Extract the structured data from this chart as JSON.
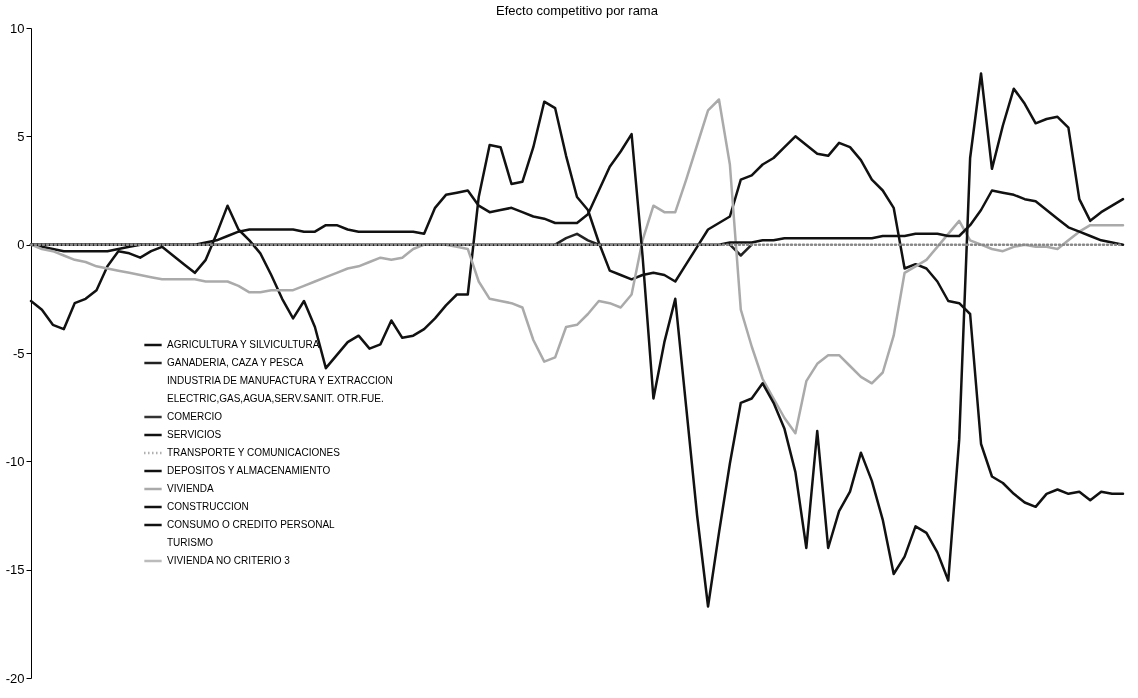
{
  "chart_data": {
    "type": "line",
    "title": "Efecto competitivo por rama",
    "categories": [
      null,
      null,
      null,
      null,
      null,
      null,
      null,
      null,
      null,
      null,
      null,
      null,
      null,
      null,
      null,
      null,
      null,
      null,
      null,
      null,
      null,
      null,
      null,
      null,
      null,
      null,
      null,
      null,
      null,
      null,
      null,
      null,
      null,
      null,
      null,
      null,
      null,
      null,
      null,
      null,
      null,
      null,
      null,
      null,
      null,
      null,
      null,
      null,
      null,
      null,
      null,
      null,
      null,
      null,
      null,
      null,
      null,
      null,
      null,
      null,
      null,
      null,
      null,
      null,
      null,
      null,
      null,
      null,
      null,
      null,
      null,
      null,
      null,
      null,
      null,
      null,
      null,
      null,
      null,
      null,
      null,
      null,
      null,
      null,
      null,
      null,
      null,
      null,
      null,
      null,
      null,
      null,
      null,
      null,
      null,
      null,
      null,
      null,
      null,
      null,
      null
    ],
    "ylim": [
      -20,
      10
    ],
    "yticks": [
      -20,
      -15,
      -10,
      -5,
      0,
      5,
      10
    ],
    "tick_labels": "y",
    "grid": false,
    "legend": "bottom left",
    "marker": "none",
    "line_style": "solid",
    "series": [
      {
        "name": "AGRICULTURA Y SILVICULTURA",
        "color": "#111111",
        "values": [
          0,
          -0.1,
          -0.2,
          -0.3,
          -0.3,
          -0.3,
          -0.3,
          -0.3,
          -0.2,
          -0.1,
          0,
          null,
          null,
          null,
          null,
          null,
          null,
          null,
          null,
          null,
          null,
          null,
          null,
          null,
          null,
          null,
          null,
          null,
          null,
          null,
          null,
          null,
          null,
          null,
          null,
          null,
          null,
          null,
          null,
          null,
          null,
          null,
          null,
          null,
          null,
          null,
          null,
          null,
          null,
          null,
          null,
          null,
          null,
          null,
          null,
          null,
          null,
          null,
          null,
          null,
          null,
          null,
          null,
          null,
          null,
          null,
          null,
          null,
          null,
          null,
          null,
          null,
          null,
          null,
          null,
          null,
          null,
          null,
          null,
          null,
          null,
          null,
          null,
          null,
          null,
          null,
          null,
          null,
          null,
          null,
          null,
          null,
          null,
          null,
          null,
          null,
          null,
          null,
          null,
          null,
          null
        ]
      },
      {
        "name": "GANADERIA, CAZA Y PESCA",
        "color": "#222222",
        "values": [
          null,
          null,
          null,
          null,
          null,
          null,
          null,
          null,
          null,
          null,
          null,
          null,
          null,
          null,
          null,
          null,
          null,
          null,
          null,
          null,
          null,
          null,
          null,
          null,
          null,
          null,
          null,
          null,
          null,
          null,
          null,
          null,
          null,
          null,
          null,
          null,
          null,
          null,
          null,
          null,
          null,
          null,
          null,
          null,
          null,
          null,
          null,
          null,
          0,
          0.3,
          0.5,
          0.2,
          0,
          null,
          null,
          null,
          null,
          null,
          null,
          null,
          null,
          null,
          null,
          null,
          0,
          -0.5,
          0,
          null,
          null,
          null,
          null,
          null,
          null,
          null,
          null,
          null,
          null,
          null,
          null,
          null,
          null,
          null,
          null,
          null,
          null,
          null,
          null,
          null,
          null,
          null,
          null,
          null,
          null,
          null,
          null,
          null,
          null,
          null,
          null,
          null,
          null
        ]
      },
      {
        "name": "INDUSTRIA DE MANUFACTURA Y EXTRACCION",
        "values": [
          null,
          null,
          null,
          null,
          null,
          null,
          null,
          null,
          null,
          null,
          null,
          null,
          null,
          null,
          null,
          null,
          null,
          null,
          null,
          null,
          null,
          null,
          null,
          null,
          null,
          null,
          null,
          null,
          null,
          null,
          null,
          null,
          null,
          null,
          null,
          null,
          null,
          null,
          null,
          null,
          null,
          null,
          null,
          null,
          null,
          null,
          null,
          null,
          null,
          null,
          null,
          null,
          null,
          null,
          null,
          null,
          null,
          null,
          null,
          null,
          null,
          null,
          null,
          null,
          null,
          null,
          null,
          null,
          null,
          null,
          null,
          null,
          null,
          null,
          null,
          null,
          null,
          null,
          null,
          null,
          null,
          null,
          null,
          null,
          null,
          null,
          null,
          null,
          null,
          null,
          null,
          null,
          null,
          null,
          null,
          null,
          null,
          null,
          null,
          null,
          null
        ]
      },
      {
        "name": "ELECTRIC,GAS,AGUA,SERV.SANIT. OTR.FUE.",
        "values": [
          null,
          null,
          null,
          null,
          null,
          null,
          null,
          null,
          null,
          null,
          null,
          null,
          null,
          null,
          null,
          null,
          null,
          null,
          null,
          null,
          null,
          null,
          null,
          null,
          null,
          null,
          null,
          null,
          null,
          null,
          null,
          null,
          null,
          null,
          null,
          null,
          null,
          null,
          null,
          null,
          null,
          null,
          null,
          null,
          null,
          null,
          null,
          null,
          null,
          null,
          null,
          null,
          null,
          null,
          null,
          null,
          null,
          null,
          null,
          null,
          null,
          null,
          null,
          null,
          null,
          null,
          null,
          null,
          null,
          null,
          null,
          null,
          null,
          null,
          null,
          null,
          null,
          null,
          null,
          null,
          null,
          null,
          null,
          null,
          null,
          null,
          null,
          null,
          null,
          null,
          null,
          null,
          null,
          null,
          null,
          null,
          null,
          null,
          null,
          null,
          null
        ]
      },
      {
        "name": "COMERCIO",
        "color": "#333333",
        "values": [
          null,
          null,
          null,
          null,
          null,
          null,
          null,
          null,
          null,
          null,
          null,
          null,
          null,
          null,
          null,
          null,
          null,
          null,
          null,
          null,
          null,
          null,
          null,
          null,
          null,
          null,
          null,
          null,
          null,
          null,
          null,
          null,
          null,
          null,
          null,
          null,
          null,
          null,
          null,
          null,
          null,
          null,
          null,
          null,
          null,
          null,
          null,
          null,
          null,
          null,
          null,
          null,
          null,
          null,
          null,
          null,
          null,
          null,
          null,
          null,
          null,
          null,
          null,
          null,
          null,
          null,
          null,
          null,
          null,
          null,
          null,
          null,
          null,
          null,
          null,
          null,
          null,
          null,
          null,
          null,
          null,
          null,
          null,
          null,
          null,
          null,
          null,
          null,
          null,
          null,
          null,
          null,
          null,
          null,
          null,
          null,
          null,
          null,
          null,
          null,
          null
        ]
      },
      {
        "name": "SERVICIOS",
        "color": "#111111",
        "values": [
          -2.6,
          -3.0,
          -3.7,
          -3.9,
          -2.7,
          -2.5,
          -2.1,
          -1.0,
          -0.3,
          -0.4,
          -0.6,
          -0.3,
          -0.1,
          -0.5,
          -0.9,
          -1.3,
          -0.7,
          0.5,
          1.8,
          0.7,
          0.2,
          -0.4,
          -1.4,
          -2.5,
          -3.4,
          -2.6,
          -3.8,
          -5.7,
          -5.1,
          -4.5,
          -4.2,
          -4.8,
          -4.6,
          -3.5,
          -4.3,
          -4.2,
          -3.9,
          -3.4,
          -2.8,
          -2.3,
          -2.3,
          2.2,
          4.6,
          4.5,
          2.8,
          2.9,
          4.5,
          6.6,
          6.3,
          4.1,
          2.2,
          1.6,
          0.1,
          -1.2,
          -1.4,
          -1.6,
          -1.4,
          -1.3,
          -1.4,
          -1.7,
          -0.9,
          -0.1,
          0.7,
          1.0,
          1.3,
          3.0,
          3.2,
          3.7,
          4.0,
          4.5,
          5.0,
          4.6,
          4.2,
          4.1,
          4.7,
          4.5,
          3.9,
          3.0,
          2.5,
          1.7,
          -1.1,
          -0.9,
          -1.1,
          -1.7,
          -2.6,
          -2.7,
          -3.2,
          -9.2,
          -10.7,
          -11.0,
          -11.5,
          -11.9,
          -12.1,
          -11.5,
          -11.3,
          -11.5,
          -11.4,
          -11.8,
          -11.4,
          -11.5,
          -11.5
        ]
      },
      {
        "name": "TRANSPORTE Y COMUNICACIONES",
        "color": "#888888",
        "line_style": "dotted",
        "values": [
          0,
          0,
          0,
          0,
          0,
          0,
          0,
          0,
          0,
          0,
          0,
          0,
          0,
          0,
          0,
          0,
          0,
          0,
          0,
          0,
          0,
          0,
          0,
          0,
          0,
          0,
          0,
          0,
          0,
          0,
          0,
          0,
          0,
          0,
          0,
          0,
          0,
          0,
          0,
          0,
          0,
          0,
          0,
          0,
          0,
          0,
          0,
          0,
          0,
          0,
          0,
          0,
          0,
          0,
          0,
          0,
          0,
          0,
          0,
          0,
          0,
          0,
          0,
          0,
          0,
          0,
          0,
          0,
          0,
          0,
          0,
          0,
          0,
          0,
          0,
          0,
          0,
          0,
          0,
          0,
          0,
          0,
          0,
          0,
          0,
          0,
          0,
          0,
          0,
          0,
          0,
          0,
          0,
          0,
          0,
          0,
          0,
          0,
          0,
          0,
          0
        ]
      },
      {
        "name": "DEPOSITOS Y ALMACENAMIENTO",
        "color": "#111111",
        "values": [
          null,
          null,
          null,
          null,
          null,
          null,
          null,
          null,
          null,
          null,
          null,
          null,
          null,
          null,
          null,
          null,
          null,
          null,
          null,
          null,
          null,
          null,
          null,
          null,
          null,
          null,
          null,
          null,
          null,
          null,
          null,
          null,
          null,
          null,
          null,
          null,
          null,
          null,
          null,
          null,
          null,
          null,
          null,
          null,
          null,
          null,
          null,
          null,
          null,
          null,
          null,
          null,
          null,
          null,
          null,
          null,
          null,
          null,
          null,
          null,
          null,
          null,
          null,
          null,
          null,
          null,
          null,
          null,
          null,
          null,
          null,
          null,
          null,
          null,
          null,
          null,
          null,
          null,
          null,
          null,
          null,
          null,
          null,
          null,
          null,
          null,
          null,
          null,
          null,
          null,
          null,
          null,
          null,
          null,
          null,
          null,
          null,
          null,
          null,
          null,
          null
        ]
      },
      {
        "name": "VIVIENDA",
        "color": "#aaaaaa",
        "values": [
          0,
          -0.2,
          -0.3,
          -0.5,
          -0.7,
          -0.8,
          -1.0,
          -1.1,
          -1.2,
          -1.3,
          -1.4,
          -1.5,
          -1.6,
          -1.6,
          -1.6,
          -1.6,
          -1.7,
          -1.7,
          -1.7,
          -1.9,
          -2.2,
          -2.2,
          -2.1,
          -2.1,
          -2.1,
          -1.9,
          -1.7,
          -1.5,
          -1.3,
          -1.1,
          -1.0,
          -0.8,
          -0.6,
          -0.7,
          -0.6,
          -0.2,
          0,
          0,
          0,
          -0.1,
          -0.2,
          -1.7,
          -2.5,
          -2.6,
          -2.7,
          -2.9,
          -4.4,
          -5.4,
          -5.2,
          -3.8,
          -3.7,
          -3.2,
          -2.6,
          -2.7,
          -2.9,
          -2.3,
          0.2,
          1.8,
          1.5,
          1.5,
          3.0,
          4.6,
          6.2,
          6.7,
          3.7,
          -3.0,
          -4.7,
          -6.2,
          -7.1,
          -8.0,
          -8.7,
          -6.3,
          -5.5,
          -5.1,
          -5.1,
          -5.6,
          -6.1,
          -6.4,
          -5.9,
          -4.2,
          -1.3,
          -1.0,
          -0.7,
          -0.1,
          0.5,
          1.1,
          0.2,
          0,
          -0.2,
          -0.3,
          -0.1,
          0,
          -0.1,
          -0.1,
          -0.2,
          0.2,
          0.6,
          0.9,
          0.9,
          0.9,
          0.9
        ]
      },
      {
        "name": "CONSTRUCCION",
        "color": "#111111",
        "values": [
          0,
          0,
          0,
          0,
          0,
          0,
          0,
          0,
          0,
          0,
          0,
          0,
          0,
          0,
          0,
          0,
          0.1,
          0.2,
          0.4,
          0.6,
          0.7,
          0.7,
          0.7,
          0.7,
          0.7,
          0.6,
          0.6,
          0.9,
          0.9,
          0.7,
          0.6,
          0.6,
          0.6,
          0.6,
          0.6,
          0.6,
          0.5,
          1.7,
          2.3,
          2.4,
          2.5,
          1.8,
          1.5,
          1.6,
          1.7,
          1.5,
          1.3,
          1.2,
          1.0,
          1.0,
          1.0,
          1.4,
          2.5,
          3.6,
          4.3,
          5.1,
          -0.5,
          -7.1,
          -4.5,
          -2.5,
          -7.5,
          -12.5,
          -16.7,
          -13.3,
          -10.1,
          -7.3,
          -7.1,
          -6.4,
          -7.3,
          -8.5,
          -10.5,
          -14.0,
          -8.6,
          -14.0,
          -12.3,
          -11.4,
          -9.6,
          -10.9,
          -12.7,
          -15.2,
          -14.4,
          -13.0,
          -13.3,
          -14.2,
          -15.5,
          -9.0,
          4.0,
          7.9,
          3.5,
          5.5,
          7.2,
          6.5,
          5.6,
          5.8,
          5.9,
          5.4,
          2.1,
          1.1,
          1.5,
          1.8,
          2.1
        ]
      },
      {
        "name": "CONSUMO O CREDITO PERSONAL",
        "color": "#111111",
        "values": [
          0,
          0,
          0,
          0,
          0,
          0,
          0,
          0,
          0,
          0,
          0,
          0,
          0,
          0,
          0,
          0,
          0,
          0,
          0,
          0,
          0,
          0,
          0,
          0,
          0,
          0,
          0,
          0,
          0,
          0,
          0,
          0,
          0,
          0,
          0,
          0,
          0,
          0,
          0,
          0,
          0,
          0,
          0,
          0,
          0,
          0,
          0,
          0,
          0,
          0,
          0,
          0,
          0,
          0,
          0,
          0,
          0,
          0,
          0,
          0,
          0,
          0,
          0,
          0,
          0.1,
          0.1,
          0.1,
          0.2,
          0.2,
          0.3,
          0.3,
          0.3,
          0.3,
          0.3,
          0.3,
          0.3,
          0.3,
          0.3,
          0.4,
          0.4,
          0.4,
          0.5,
          0.5,
          0.5,
          0.4,
          0.4,
          0.9,
          1.6,
          2.5,
          2.4,
          2.3,
          2.1,
          2.0,
          1.6,
          1.2,
          0.8,
          0.6,
          0.4,
          0.2,
          0.1,
          0
        ]
      },
      {
        "name": "TURISMO",
        "values": [
          null,
          null,
          null,
          null,
          null,
          null,
          null,
          null,
          null,
          null,
          null,
          null,
          null,
          null,
          null,
          null,
          null,
          null,
          null,
          null,
          null,
          null,
          null,
          null,
          null,
          null,
          null,
          null,
          null,
          null,
          null,
          null,
          null,
          null,
          null,
          null,
          null,
          null,
          null,
          null,
          null,
          null,
          null,
          null,
          null,
          null,
          null,
          null,
          null,
          null,
          null,
          null,
          null,
          null,
          null,
          null,
          null,
          null,
          null,
          null,
          null,
          null,
          null,
          null,
          null,
          null,
          null,
          null,
          null,
          null,
          null,
          null,
          null,
          null,
          null,
          null,
          null,
          null,
          null,
          null,
          null,
          null,
          null,
          null,
          null,
          null,
          null,
          null,
          null,
          null,
          null,
          null,
          null,
          null,
          null,
          null,
          null,
          null,
          null,
          null,
          null
        ]
      },
      {
        "name": "VIVIENDA NO CRITERIO 3",
        "color": "#bbbbbb",
        "values": [
          null,
          null,
          null,
          null,
          null,
          null,
          null,
          null,
          null,
          null,
          null,
          null,
          null,
          null,
          null,
          null,
          null,
          null,
          null,
          null,
          null,
          null,
          null,
          null,
          null,
          null,
          null,
          null,
          null,
          null,
          null,
          null,
          null,
          null,
          null,
          null,
          null,
          null,
          null,
          null,
          null,
          null,
          null,
          null,
          null,
          null,
          null,
          null,
          null,
          null,
          null,
          null,
          null,
          null,
          null,
          null,
          null,
          null,
          null,
          null,
          null,
          null,
          null,
          null,
          null,
          null,
          null,
          null,
          null,
          null,
          null,
          null,
          null,
          null,
          null,
          null,
          null,
          null,
          null,
          null,
          null,
          null,
          null,
          null,
          null,
          null,
          null,
          null,
          null,
          null,
          null,
          null,
          null,
          null,
          null,
          null,
          null,
          null,
          null,
          null,
          null
        ]
      }
    ]
  }
}
